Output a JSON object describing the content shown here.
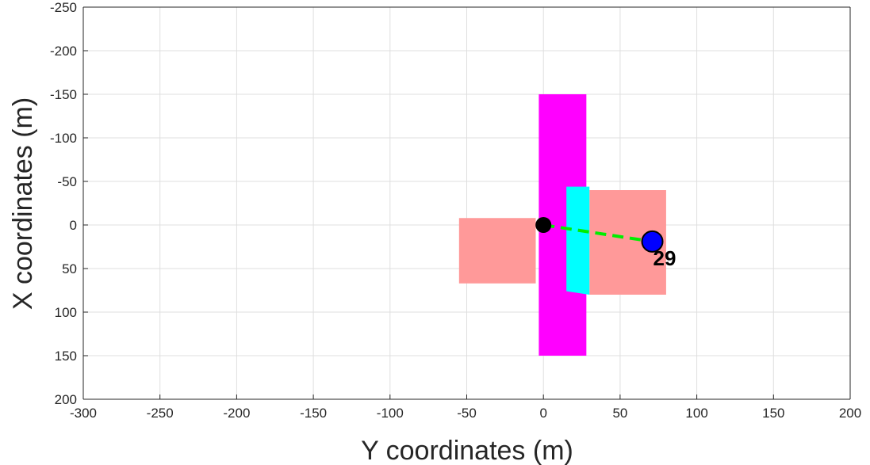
{
  "chart_data": {
    "type": "scatter",
    "xlabel": "Y coordinates (m)",
    "ylabel": "X coordinates (m)",
    "xlim": [
      -300,
      200
    ],
    "ylim": [
      -250,
      200
    ],
    "y_axis_reversed": true,
    "grid": true,
    "xticks": [
      -300,
      -250,
      -200,
      -150,
      -100,
      -50,
      0,
      50,
      100,
      150,
      200
    ],
    "yticks": [
      -250,
      -200,
      -150,
      -100,
      -50,
      0,
      50,
      100,
      150,
      200
    ],
    "regions": [
      {
        "name": "magenta-strip",
        "color": "#ff00ff",
        "points": [
          [
            -3,
            -150
          ],
          [
            28,
            -150
          ],
          [
            28,
            150
          ],
          [
            -3,
            150
          ]
        ]
      },
      {
        "name": "left-pink-block",
        "color": "#ff9999",
        "points": [
          [
            -55,
            -8
          ],
          [
            -5,
            -8
          ],
          [
            -5,
            67
          ],
          [
            -55,
            67
          ]
        ]
      },
      {
        "name": "right-pink-block",
        "color": "#ff9999",
        "points": [
          [
            30,
            -40
          ],
          [
            80,
            -40
          ],
          [
            80,
            80
          ],
          [
            30,
            80
          ]
        ]
      },
      {
        "name": "cyan-block",
        "color": "#00ffff",
        "points": [
          [
            15,
            -44
          ],
          [
            30,
            -44
          ],
          [
            30,
            80
          ],
          [
            15,
            76
          ]
        ]
      }
    ],
    "path": {
      "color": "#00ee00",
      "points": [
        [
          0,
          0
        ],
        [
          71,
          19
        ]
      ]
    },
    "start_point": {
      "x": 0,
      "y": 0,
      "color": "#000000"
    },
    "target_point": {
      "x": 71,
      "y": 19,
      "color": "#0000ff",
      "label": "29"
    }
  }
}
